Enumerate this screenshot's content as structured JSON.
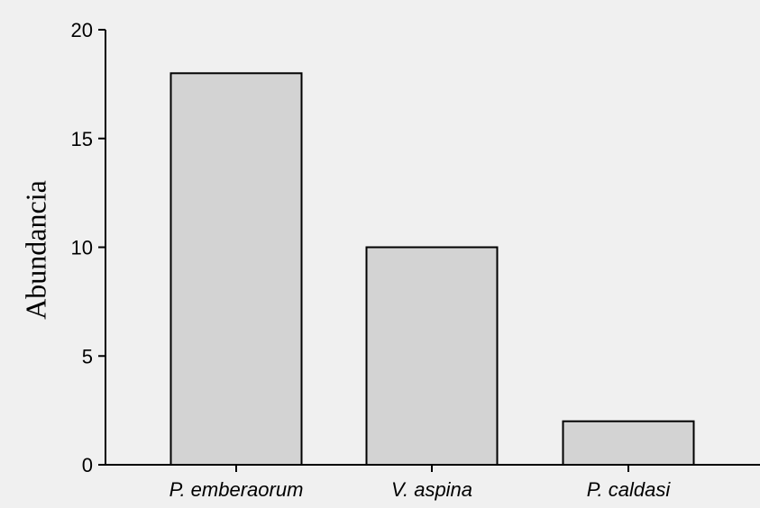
{
  "chart_data": {
    "type": "bar",
    "categories": [
      "P. emberaorum",
      "V. aspina",
      "P. caldasi"
    ],
    "values": [
      18,
      10,
      2
    ],
    "title": "",
    "xlabel": "",
    "ylabel": "Abundancia",
    "ylim": [
      0,
      20
    ],
    "yticks": [
      0,
      5,
      10,
      15,
      20
    ],
    "ytick_labels": [
      "0",
      "5",
      "10",
      "15",
      "20"
    ],
    "grid": false,
    "bar_color": "#d3d3d3",
    "edge_color": "#000000",
    "background": "#f0f0f0"
  }
}
